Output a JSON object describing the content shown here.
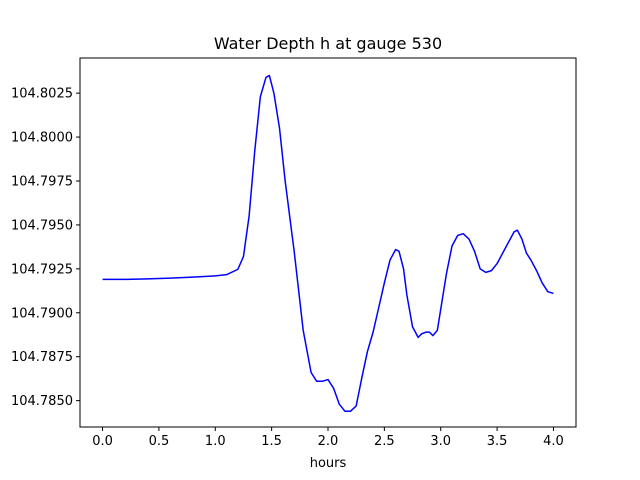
{
  "chart_data": {
    "type": "line",
    "title": "Water Depth h at gauge 530",
    "xlabel": "hours",
    "ylabel": "",
    "xlim": [
      -0.2,
      4.2
    ],
    "ylim": [
      104.7835,
      104.8045
    ],
    "xticks": [
      0.0,
      0.5,
      1.0,
      1.5,
      2.0,
      2.5,
      3.0,
      3.5,
      4.0
    ],
    "xtick_labels": [
      "0.0",
      "0.5",
      "1.0",
      "1.5",
      "2.0",
      "2.5",
      "3.0",
      "3.5",
      "4.0"
    ],
    "yticks": [
      104.785,
      104.7875,
      104.79,
      104.7925,
      104.795,
      104.7975,
      104.8,
      104.8025
    ],
    "ytick_labels": [
      "104.7850",
      "104.7875",
      "104.7900",
      "104.7925",
      "104.7950",
      "104.7975",
      "104.8000",
      "104.8025"
    ],
    "grid": false,
    "series": [
      {
        "color": "#0000ff",
        "x": [
          0.0,
          0.2,
          0.4,
          0.6,
          0.8,
          1.0,
          1.1,
          1.2,
          1.25,
          1.3,
          1.35,
          1.4,
          1.45,
          1.48,
          1.52,
          1.57,
          1.62,
          1.7,
          1.78,
          1.85,
          1.9,
          1.95,
          2.0,
          2.05,
          2.1,
          2.15,
          2.2,
          2.25,
          2.3,
          2.35,
          2.4,
          2.45,
          2.5,
          2.55,
          2.6,
          2.63,
          2.67,
          2.7,
          2.75,
          2.8,
          2.83,
          2.87,
          2.9,
          2.93,
          2.97,
          3.0,
          3.05,
          3.1,
          3.15,
          3.2,
          3.25,
          3.3,
          3.35,
          3.4,
          3.45,
          3.5,
          3.55,
          3.6,
          3.65,
          3.68,
          3.72,
          3.76,
          3.8,
          3.85,
          3.9,
          3.95,
          4.0
        ],
        "y": [
          104.7919,
          104.7919,
          104.79193,
          104.79197,
          104.79203,
          104.7921,
          104.79217,
          104.79247,
          104.7932,
          104.7955,
          104.7992,
          104.8023,
          104.8034,
          104.8035,
          104.8025,
          104.8005,
          104.7975,
          104.7935,
          104.789,
          104.7866,
          104.7861,
          104.7861,
          104.7862,
          104.7857,
          104.7848,
          104.7844,
          104.7844,
          104.7847,
          104.7863,
          104.7878,
          104.7889,
          104.7903,
          104.7917,
          104.793,
          104.7936,
          104.7935,
          104.7925,
          104.791,
          104.7892,
          104.7886,
          104.7888,
          104.7889,
          104.7889,
          104.7887,
          104.789,
          104.7902,
          104.7922,
          104.7938,
          104.7944,
          104.7945,
          104.7942,
          104.7935,
          104.7925,
          104.7923,
          104.7924,
          104.7928,
          104.7934,
          104.794,
          104.7946,
          104.7947,
          104.7942,
          104.7934,
          104.793,
          104.7924,
          104.7917,
          104.7912,
          104.7911
        ]
      }
    ]
  }
}
